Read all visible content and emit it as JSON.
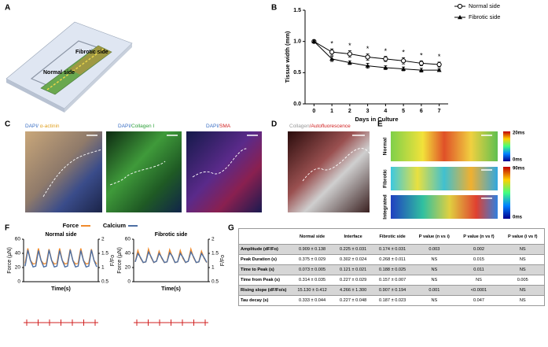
{
  "panel_labels": [
    "A",
    "B",
    "C",
    "D",
    "E",
    "F",
    "G"
  ],
  "panel_a": {
    "labels": [
      "Fibrotic side",
      "Normal side"
    ]
  },
  "panel_c": {
    "titles": [
      [
        "DAPI/ ",
        "α-actinin"
      ],
      [
        "DAPI/",
        "Collagen I"
      ],
      [
        "DAPI/",
        "SMA"
      ]
    ]
  },
  "panel_d": {
    "title": [
      "Collagen",
      "/Autofluorescence"
    ]
  },
  "panel_e": {
    "rows": [
      "Normal",
      "Fibrotic",
      "Integrated"
    ],
    "colorbars": [
      [
        "20ms",
        "0ms"
      ],
      [
        "90ms",
        "0ms"
      ]
    ]
  },
  "chart_data": [
    {
      "type": "line",
      "ylabel": "Tissue width (mm)",
      "xlabel": "Days in Culture",
      "x": [
        0,
        1,
        2,
        3,
        4,
        5,
        6,
        7
      ],
      "xlim": [
        -0.5,
        7.5
      ],
      "xticks": [
        0,
        1,
        2,
        3,
        4,
        5,
        6,
        7
      ],
      "ylim": [
        0,
        1.5
      ],
      "yticks": [
        {
          "value": 0,
          "label": "0.0"
        },
        {
          "value": 0.5,
          "label": "0.5"
        },
        {
          "value": 1,
          "label": "1.0"
        },
        {
          "value": 1.5,
          "label": "1.5"
        }
      ],
      "legend": "upper right",
      "series": [
        {
          "name": "Normal side",
          "color": "#000000",
          "marker": "open-circle",
          "values": [
            1.0,
            0.83,
            0.8,
            0.75,
            0.72,
            0.69,
            0.65,
            0.63
          ],
          "errors": [
            0.02,
            0.05,
            0.05,
            0.05,
            0.04,
            0.05,
            0.04,
            0.04
          ]
        },
        {
          "name": "Fibrotic side",
          "color": "#000000",
          "marker": "triangle",
          "values": [
            1.0,
            0.72,
            0.66,
            0.61,
            0.58,
            0.56,
            0.54,
            0.54
          ],
          "errors": [
            0.02,
            0.04,
            0.03,
            0.04,
            0.03,
            0.03,
            0.03,
            0.02
          ]
        }
      ],
      "annotations": [
        null,
        "*",
        "*",
        "*",
        "*",
        "*",
        "*",
        "*"
      ]
    },
    {
      "type": "line",
      "title": "Normal side",
      "xlabel": "Time(s)",
      "ylabel": "Force (µN)",
      "y2label": "F/Fo",
      "ylim": [
        0,
        60
      ],
      "yticks": [
        0,
        20,
        40,
        60
      ],
      "y2lim": [
        0.5,
        2
      ],
      "y2ticks": [
        0.5,
        1,
        1.5,
        2
      ],
      "series": [
        {
          "name": "Force",
          "color": "#f08a2c",
          "values": [
            26,
            47,
            30,
            25,
            26,
            47,
            30,
            25,
            26,
            46,
            30,
            25,
            26,
            47,
            30,
            25,
            26,
            46,
            30,
            25,
            26,
            47,
            30,
            25,
            26,
            46,
            30,
            25
          ]
        },
        {
          "name": "Calcium",
          "color": "#4d6fa3",
          "axis": "y2",
          "values": [
            1.05,
            1.62,
            1.25,
            1.02,
            1.05,
            1.6,
            1.25,
            1.02,
            1.05,
            1.62,
            1.25,
            1.02,
            1.05,
            1.6,
            1.25,
            1.02,
            1.05,
            1.62,
            1.25,
            1.02,
            1.05,
            1.6,
            1.25,
            1.02,
            1.05,
            1.62,
            1.25,
            1.02
          ]
        }
      ]
    },
    {
      "type": "line",
      "title": "Fibrotic side",
      "xlabel": "Time(s)",
      "ylabel": "Force (µN)",
      "y2label": "F/Fo",
      "ylim": [
        0,
        60
      ],
      "yticks": [
        0,
        20,
        40,
        60
      ],
      "y2lim": [
        0.5,
        2
      ],
      "y2ticks": [
        0.5,
        1,
        1.5,
        2
      ],
      "series": [
        {
          "name": "Force",
          "color": "#f08a2c",
          "values": [
            28,
            44,
            33,
            27,
            28,
            46,
            34,
            27,
            29,
            43,
            33,
            27,
            28,
            45,
            35,
            27,
            28,
            44,
            33,
            27,
            29,
            46,
            34,
            27,
            28,
            43,
            33,
            27
          ]
        },
        {
          "name": "Calcium",
          "color": "#4d6fa3",
          "axis": "y2",
          "values": [
            1.2,
            1.5,
            1.35,
            1.18,
            1.2,
            1.55,
            1.38,
            1.18,
            1.22,
            1.5,
            1.35,
            1.18,
            1.2,
            1.52,
            1.4,
            1.18,
            1.2,
            1.5,
            1.36,
            1.18,
            1.22,
            1.55,
            1.38,
            1.18,
            1.2,
            1.5,
            1.35,
            1.18
          ]
        }
      ]
    }
  ],
  "table": {
    "header": [
      "Normal side",
      "Interface",
      "Fibrotic side",
      "P value (n vs i)",
      "P value (n vs f)",
      "P value (i vs f)"
    ],
    "rows": [
      [
        "Amplitude (dF/Fo)",
        "0.909 ± 0.138",
        "0.225 ± 0.031",
        "0.174 ± 0.031",
        "0.003",
        "0.002",
        "NS"
      ],
      [
        "Peak Duration (s)",
        "0.375 ± 0.029",
        "0.302 ± 0.024",
        "0.268 ± 0.011",
        "NS",
        "0.015",
        "NS"
      ],
      [
        "Time to Peak (s)",
        "0.073 ± 0.005",
        "0.121 ± 0.021",
        "0.188 ± 0.025",
        "NS",
        "0.011",
        "NS"
      ],
      [
        "Time from Peak (s)",
        "0.314 ± 0.035",
        "0.227 ± 0.029",
        "0.157 ± 0.007",
        "NS",
        "NS",
        "0.005"
      ],
      [
        "Rising slope (dF/Fo/s)",
        "15.130 ± 0.412",
        "4.266 ± 1.300",
        "0.907 ± 0.194",
        "0.001",
        "<0.0001",
        "NS"
      ],
      [
        "Tau decay (s)",
        "0.333 ± 0.044",
        "0.227 ± 0.048",
        "0.187 ± 0.023",
        "NS",
        "0.047",
        "NS"
      ]
    ]
  }
}
